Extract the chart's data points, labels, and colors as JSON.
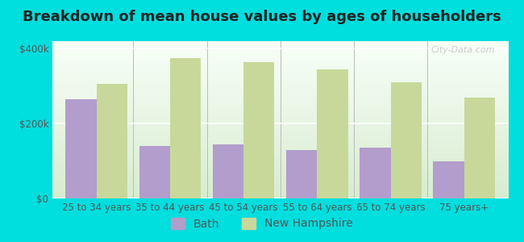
{
  "title": "Breakdown of mean house values by ages of householders",
  "categories": [
    "25 to 34 years",
    "35 to 44 years",
    "45 to 54 years",
    "55 to 64 years",
    "65 to 74 years",
    "75 years+"
  ],
  "bath_values": [
    265000,
    140000,
    145000,
    130000,
    135000,
    100000
  ],
  "nh_values": [
    305000,
    375000,
    365000,
    345000,
    310000,
    270000
  ],
  "bath_color": "#b39dcc",
  "nh_color": "#c8d89a",
  "background_color": "#00dede",
  "plot_bg_top": "#d8ecd0",
  "plot_bg_bottom": "#f8fff8",
  "ylim": [
    0,
    420000
  ],
  "yticks": [
    0,
    200000,
    400000
  ],
  "ytick_labels": [
    "$0",
    "$200k",
    "$400k"
  ],
  "bar_width": 0.42,
  "legend_bath": "Bath",
  "legend_nh": "New Hampshire",
  "title_fontsize": 13,
  "tick_fontsize": 8.5,
  "legend_fontsize": 10,
  "watermark": "City-Data.com"
}
